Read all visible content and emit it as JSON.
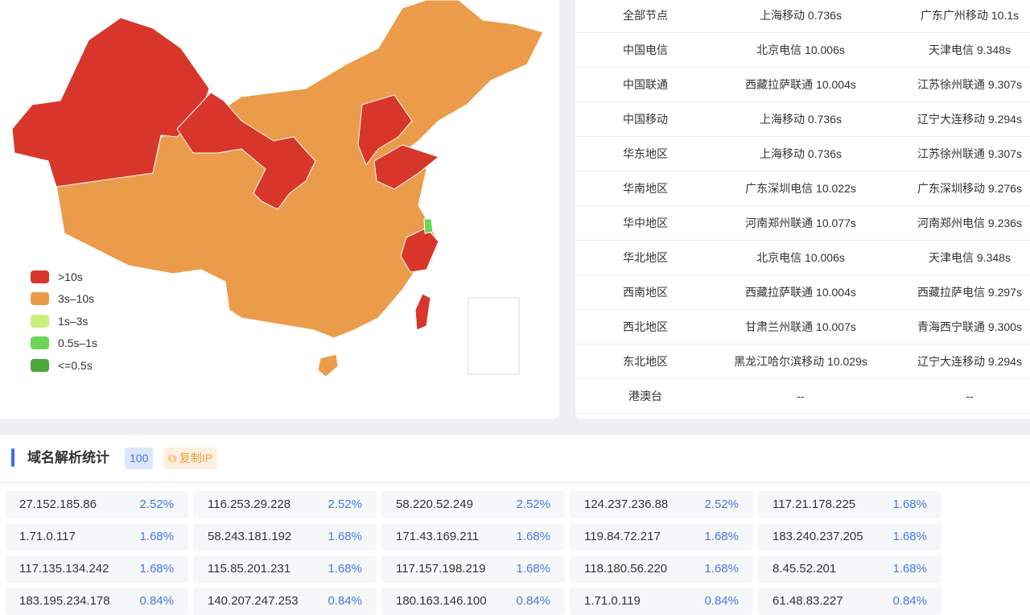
{
  "colors": {
    "gt10": "#d9362b",
    "s3_10": "#eb9c4a",
    "s1_3": "#c9f07a",
    "s05_1": "#6dd65a",
    "le05": "#4aa83a",
    "accent": "#3d6bf5",
    "pct": "#4b76e8"
  },
  "legend": [
    {
      "label": ">10s",
      "color": "#d9362b"
    },
    {
      "label": "3s–10s",
      "color": "#eb9c4a"
    },
    {
      "label": "1s–3s",
      "color": "#c9f07a"
    },
    {
      "label": "0.5s–1s",
      "color": "#6dd65a"
    },
    {
      "label": "<=0.5s",
      "color": "#4aa83a"
    }
  ],
  "table": [
    [
      "全部节点",
      "上海移动 0.736s",
      "广东广州移动 10.1s"
    ],
    [
      "中国电信",
      "北京电信 10.006s",
      "天津电信 9.348s"
    ],
    [
      "中国联通",
      "西藏拉萨联通 10.004s",
      "江苏徐州联通 9.307s"
    ],
    [
      "中国移动",
      "上海移动 0.736s",
      "辽宁大连移动 9.294s"
    ],
    [
      "华东地区",
      "上海移动 0.736s",
      "江苏徐州联通 9.307s"
    ],
    [
      "华南地区",
      "广东深圳电信 10.022s",
      "广东深圳移动 9.276s"
    ],
    [
      "华中地区",
      "河南郑州联通 10.077s",
      "河南郑州电信 9.236s"
    ],
    [
      "华北地区",
      "北京电信 10.006s",
      "天津电信 9.348s"
    ],
    [
      "西南地区",
      "西藏拉萨联通 10.004s",
      "西藏拉萨电信 9.297s"
    ],
    [
      "西北地区",
      "甘肃兰州联通 10.007s",
      "青海西宁联通 9.300s"
    ],
    [
      "东北地区",
      "黑龙江哈尔滨移动 10.029s",
      "辽宁大连移动 9.294s"
    ],
    [
      "港澳台",
      "--",
      "--"
    ]
  ],
  "dns": {
    "title": "域名解析统计",
    "count": "100",
    "copy_label": "复制IP",
    "copy_icon": "copy-icon",
    "items": [
      {
        "ip": "27.152.185.86",
        "pct": "2.52%"
      },
      {
        "ip": "116.253.29.228",
        "pct": "2.52%"
      },
      {
        "ip": "58.220.52.249",
        "pct": "2.52%"
      },
      {
        "ip": "124.237.236.88",
        "pct": "2.52%"
      },
      {
        "ip": "117.21.178.225",
        "pct": "1.68%"
      },
      {
        "ip": "1.71.0.117",
        "pct": "1.68%"
      },
      {
        "ip": "58.243.181.192",
        "pct": "1.68%"
      },
      {
        "ip": "171.43.169.211",
        "pct": "1.68%"
      },
      {
        "ip": "119.84.72.217",
        "pct": "1.68%"
      },
      {
        "ip": "183.240.237.205",
        "pct": "1.68%"
      },
      {
        "ip": "117.135.134.242",
        "pct": "1.68%"
      },
      {
        "ip": "115.85.201.231",
        "pct": "1.68%"
      },
      {
        "ip": "117.157.198.219",
        "pct": "1.68%"
      },
      {
        "ip": "118.180.56.220",
        "pct": "1.68%"
      },
      {
        "ip": "8.45.52.201",
        "pct": "1.68%"
      },
      {
        "ip": "183.195.234.178",
        "pct": "0.84%"
      },
      {
        "ip": "140.207.247.253",
        "pct": "0.84%"
      },
      {
        "ip": "180.163.146.100",
        "pct": "0.84%"
      },
      {
        "ip": "1.71.0.119",
        "pct": "0.84%"
      },
      {
        "ip": "61.48.83.227",
        "pct": "0.84%"
      }
    ]
  }
}
